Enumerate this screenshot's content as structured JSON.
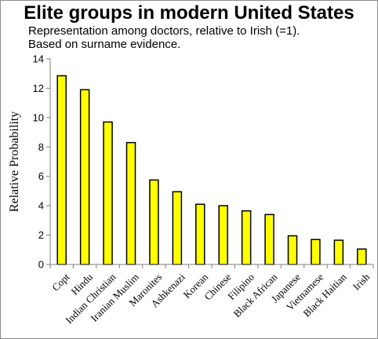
{
  "chart_data": {
    "type": "bar",
    "title": "Elite groups in modern United States",
    "subtitle": [
      "Representation among doctors, relative to Irish (=1).",
      "Based on surname evidence."
    ],
    "xlabel": "",
    "ylabel": "Relative Probability",
    "ylim": [
      0,
      14
    ],
    "yticks": [
      0,
      2,
      4,
      6,
      8,
      10,
      12,
      14
    ],
    "grid": false,
    "legend": "none",
    "categories": [
      "Copt",
      "Hindu",
      "Indian Christian",
      "Iranian Muslim",
      "Maronites",
      "Ashkenazi",
      "Korean",
      "Chinese",
      "Filipino",
      "Black African",
      "Japanese",
      "Vietnamese",
      "Black Haitian",
      "Irish"
    ],
    "values": [
      12.85,
      11.9,
      9.7,
      8.3,
      5.75,
      4.95,
      4.1,
      4.0,
      3.65,
      3.4,
      1.95,
      1.7,
      1.65,
      1.05
    ],
    "colors": {
      "bar_fill": "#ffff00",
      "bar_stroke": "#000000",
      "axis": "#808080"
    }
  }
}
